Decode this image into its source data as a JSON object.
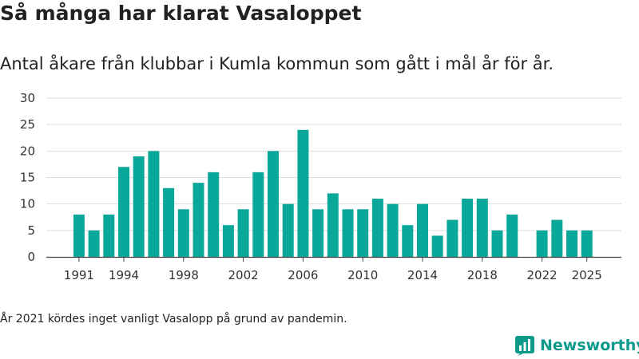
{
  "title": "Så många har klarat Vasaloppet",
  "subtitle": "Antal åkare från klubbar i Kumla kommun som gått i mål år för år.",
  "note": "År 2021 kördes inget vanligt Vasalopp på grund av pandemin.",
  "brand": {
    "name": "Newsworthy",
    "icon": "bar-chart-logo-icon"
  },
  "colors": {
    "bar": "#0aa89b",
    "grid": "#dddddd",
    "axis": "#444444",
    "text": "#333333",
    "brand": "#0a9a8c"
  },
  "chart_data": {
    "type": "bar",
    "categories": [
      1991,
      1992,
      1993,
      1994,
      1995,
      1996,
      1997,
      1998,
      1999,
      2000,
      2001,
      2002,
      2003,
      2004,
      2005,
      2006,
      2007,
      2008,
      2009,
      2010,
      2011,
      2012,
      2013,
      2014,
      2015,
      2016,
      2017,
      2018,
      2019,
      2020,
      2021,
      2022,
      2023,
      2024,
      2025
    ],
    "values": [
      8,
      5,
      8,
      17,
      19,
      20,
      13,
      9,
      14,
      16,
      6,
      9,
      16,
      20,
      10,
      24,
      9,
      12,
      9,
      9,
      11,
      10,
      6,
      10,
      4,
      7,
      11,
      11,
      5,
      8,
      null,
      5,
      7,
      5,
      5
    ],
    "x_tick_labels": [
      "1991",
      "1994",
      "1998",
      "2002",
      "2006",
      "2010",
      "2014",
      "2018",
      "2022",
      "2025"
    ],
    "y_ticks": [
      0,
      5,
      10,
      15,
      20,
      25,
      30
    ],
    "ylim": [
      0,
      30
    ],
    "xlabel": "",
    "ylabel": "",
    "grid": true
  }
}
